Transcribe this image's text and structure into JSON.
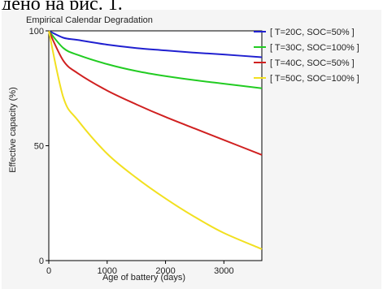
{
  "document": {
    "text_fragment": "дено на рис. 1."
  },
  "chart_data": {
    "type": "line",
    "title": "Empirical Calendar Degradation",
    "xlabel": "Age of battery (days)",
    "ylabel": "Effective capacity (%)",
    "xlim": [
      0,
      3650
    ],
    "ylim": [
      0,
      100
    ],
    "xticks": [
      0,
      1000,
      2000,
      3000
    ],
    "yticks": [
      0,
      50,
      100
    ],
    "grid": false,
    "legend_position": "right",
    "x": [
      0,
      250,
      500,
      1000,
      1500,
      2000,
      2500,
      3000,
      3650
    ],
    "series": [
      {
        "name": "[ T=20C, SOC=50% ]",
        "color": "#2020d0",
        "values": [
          100,
          97,
          96,
          94,
          92.5,
          91.5,
          90.5,
          89.7,
          88.5
        ]
      },
      {
        "name": "[ T=30C, SOC=100% ]",
        "color": "#22cc22",
        "values": [
          100,
          92.5,
          89.5,
          85.5,
          82.5,
          80.3,
          78.5,
          77,
          75
        ]
      },
      {
        "name": "[ T=40C, SOC=50% ]",
        "color": "#d02020",
        "values": [
          100,
          87,
          81.5,
          74,
          68,
          62.5,
          57.5,
          52.5,
          46
        ]
      },
      {
        "name": "[ T=50C, SOC=100% ]",
        "color": "#f2e020",
        "values": [
          100,
          71,
          61,
          46.5,
          36,
          27,
          19,
          12,
          5
        ]
      }
    ]
  }
}
